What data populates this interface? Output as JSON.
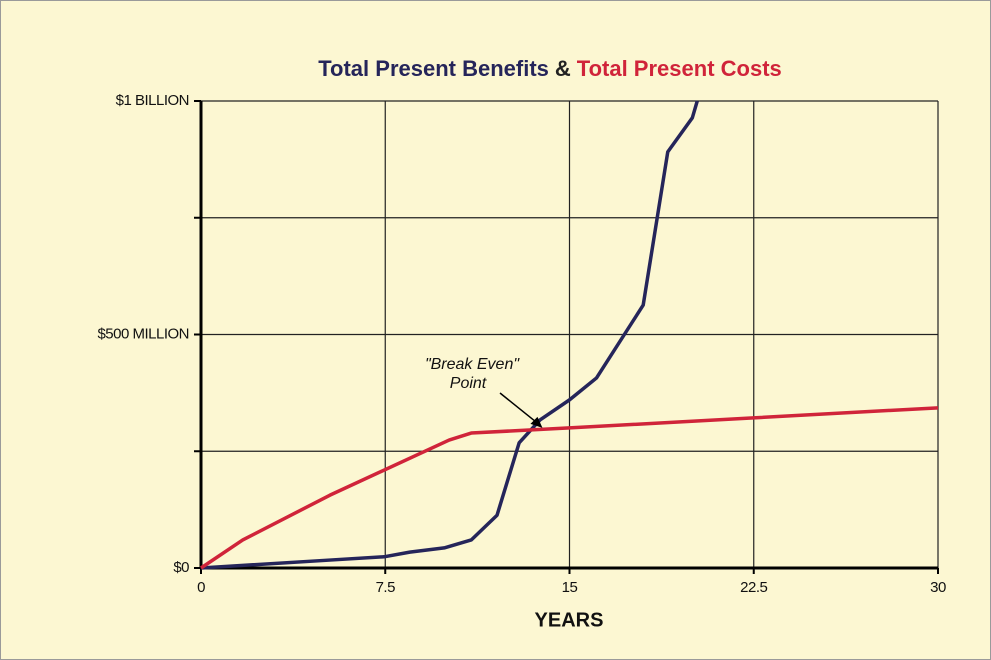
{
  "chart_data": {
    "type": "line",
    "title_separator": "&",
    "xlabel": "YEARS",
    "xlim": [
      0,
      30
    ],
    "xticks": [
      0,
      7.5,
      15,
      22.5,
      30
    ],
    "ylim": [
      0,
      1000
    ],
    "yticks": [
      {
        "value": 0,
        "label": "$0"
      },
      {
        "value": 500,
        "label": "$500 MILLION"
      },
      {
        "value": 1000,
        "label": "$1 BILLION"
      }
    ],
    "yminor_ticks": [
      250,
      750
    ],
    "grid": true,
    "annotation": {
      "lines": [
        "\"Break Even\"",
        "Point"
      ],
      "x": 13.9,
      "y": 300
    },
    "series": [
      {
        "name": "Total Present Benefits",
        "color": "#25255a",
        "x": [
          0,
          5.25,
          7.45,
          8.5,
          9.9,
          11.0,
          12.05,
          12.95,
          13.8,
          15.0,
          16.1,
          18.0,
          19.0,
          20.0,
          20.2
        ],
        "values": [
          0,
          17,
          24,
          34,
          43,
          60,
          113,
          268,
          317,
          360,
          407,
          563,
          891,
          964,
          1000
        ]
      },
      {
        "name": "Total Present Costs",
        "color": "#d0243a",
        "x": [
          0,
          1.7,
          5.25,
          10.1,
          11.0,
          15.0,
          22.3,
          30
        ],
        "values": [
          0,
          60,
          156,
          274,
          289,
          300,
          321,
          343
        ]
      }
    ]
  }
}
